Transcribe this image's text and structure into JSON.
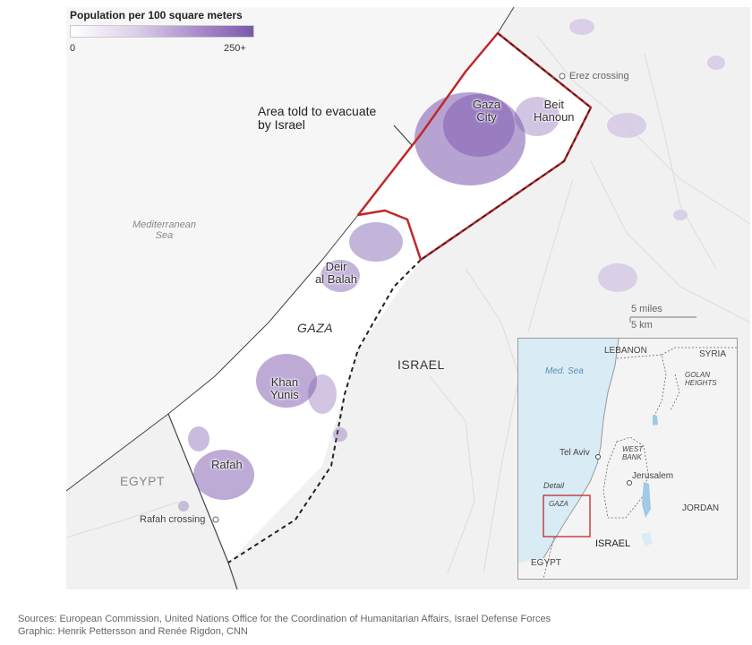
{
  "legend": {
    "title": "Population per 100 square meters",
    "min_label": "0",
    "max_label": "250+",
    "color_low": "#ffffff",
    "color_high": "#7b58ad"
  },
  "map": {
    "annotation": "Area told to evacuate\nby Israel",
    "sea_label": "Mediterranean\nSea",
    "region_gaza": "GAZA",
    "region_israel": "ISRAEL",
    "region_egypt": "EGYPT",
    "cities": {
      "gaza_city": "Gaza\nCity",
      "beit_hanoun": "Beit\nHanoun",
      "deir_al_balah": "Deir\nal Balah",
      "khan_yunis": "Khan\nYunis",
      "rafah": "Rafah"
    },
    "crossings": {
      "erez": "Erez crossing",
      "rafah": "Rafah crossing"
    },
    "scale": {
      "miles": "5 miles",
      "km": "5 km"
    },
    "colors": {
      "evacuation_outline": "#c0282b",
      "population": "#7b58ad",
      "land": "#f1f1f1",
      "strip": "#ffffff"
    }
  },
  "inset": {
    "sea": "Med. Sea",
    "lebanon": "LEBANON",
    "syria": "SYRIA",
    "golan": "GOLAN\nHEIGHTS",
    "west_bank": "WEST\nBANK",
    "tel_aviv": "Tel Aviv",
    "jerusalem": "Jerusalem",
    "jordan": "JORDAN",
    "israel": "ISRAEL",
    "egypt": "EGYPT",
    "detail": "Detail",
    "gaza": "GAZA",
    "colors": {
      "sea": "#d9ecf5",
      "detail_box": "#c0282b"
    }
  },
  "sources": "Sources: European Commission, United Nations Office for the Coordination of Humanitarian Affairs, Israel Defense Forces",
  "graphic": "Graphic: Henrik Pettersson and Renée Rigdon, CNN"
}
